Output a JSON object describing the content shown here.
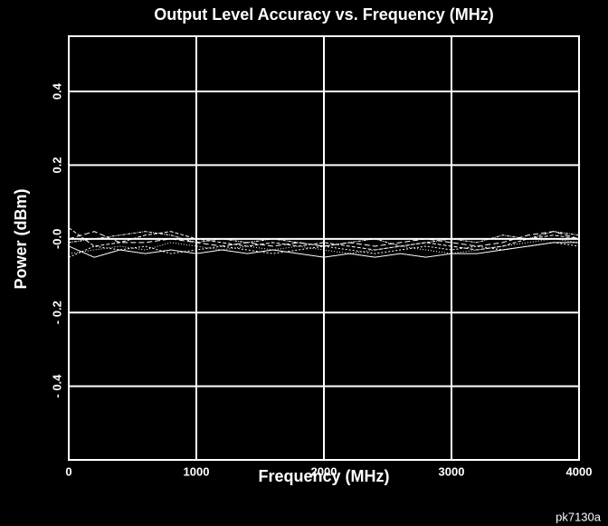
{
  "chart_data": {
    "type": "line",
    "title": "Output Level Accuracy vs. Frequency (MHz)",
    "x_label": "Frequency (MHz)",
    "y_label": "Power  (dBm)",
    "annotation": "pk7130a",
    "x": [
      0,
      200,
      400,
      600,
      800,
      1000,
      1200,
      1400,
      1600,
      1800,
      2000,
      2200,
      2400,
      2600,
      2800,
      3000,
      3200,
      3400,
      3600,
      3800,
      4000
    ],
    "series": [
      {
        "color": "#ffffff",
        "values": [
          0.03,
          -0.02,
          -0.01,
          0.01,
          0.02,
          0.0,
          -0.01,
          -0.02,
          -0.01,
          -0.02,
          -0.01,
          -0.02,
          -0.03,
          -0.02,
          -0.01,
          -0.02,
          -0.03,
          -0.02,
          0.0,
          0.01,
          0.0
        ]
      },
      {
        "color": "#ffffff",
        "values": [
          -0.04,
          -0.03,
          -0.02,
          -0.03,
          -0.01,
          -0.02,
          -0.03,
          -0.02,
          -0.03,
          -0.02,
          -0.03,
          -0.04,
          -0.03,
          -0.02,
          -0.03,
          -0.04,
          -0.03,
          -0.02,
          -0.01,
          0.0,
          -0.01
        ]
      },
      {
        "color": "#ffffff",
        "values": [
          -0.02,
          -0.05,
          -0.03,
          -0.04,
          -0.03,
          -0.04,
          -0.03,
          -0.04,
          -0.03,
          -0.04,
          -0.05,
          -0.04,
          -0.05,
          -0.04,
          -0.05,
          -0.04,
          -0.04,
          -0.03,
          -0.02,
          -0.01,
          -0.01
        ]
      },
      {
        "color": "#ffffff",
        "values": [
          0.0,
          0.02,
          -0.01,
          -0.01,
          0.0,
          -0.01,
          -0.02,
          -0.01,
          -0.02,
          -0.01,
          -0.02,
          -0.01,
          -0.02,
          -0.01,
          0.0,
          -0.01,
          -0.02,
          -0.01,
          0.01,
          0.02,
          0.0
        ]
      },
      {
        "color": "#ffffff",
        "values": [
          -0.05,
          -0.02,
          -0.03,
          -0.02,
          -0.04,
          -0.03,
          -0.02,
          -0.03,
          -0.04,
          -0.03,
          -0.02,
          -0.03,
          -0.04,
          -0.03,
          -0.02,
          -0.03,
          -0.02,
          -0.03,
          -0.02,
          -0.01,
          -0.02
        ]
      },
      {
        "color": "#ffffff",
        "values": [
          -0.01,
          0.0,
          0.01,
          0.02,
          0.01,
          -0.01,
          0.0,
          -0.01,
          0.0,
          -0.01,
          -0.02,
          -0.01,
          0.0,
          -0.02,
          -0.01,
          0.0,
          -0.01,
          0.01,
          0.0,
          0.02,
          0.01
        ]
      }
    ],
    "xlim": [
      0,
      4000
    ],
    "xticks": [
      0,
      1000,
      2000,
      3000,
      4000
    ],
    "ylim": [
      -0.6,
      0.55
    ],
    "yticks": [
      {
        "value": -0.4,
        "label": "- 0.4"
      },
      {
        "value": -0.2,
        "label": "- 0.2"
      },
      {
        "value": 0,
        "label": "-0.0"
      },
      0.2,
      0.4
    ],
    "grid": true
  }
}
